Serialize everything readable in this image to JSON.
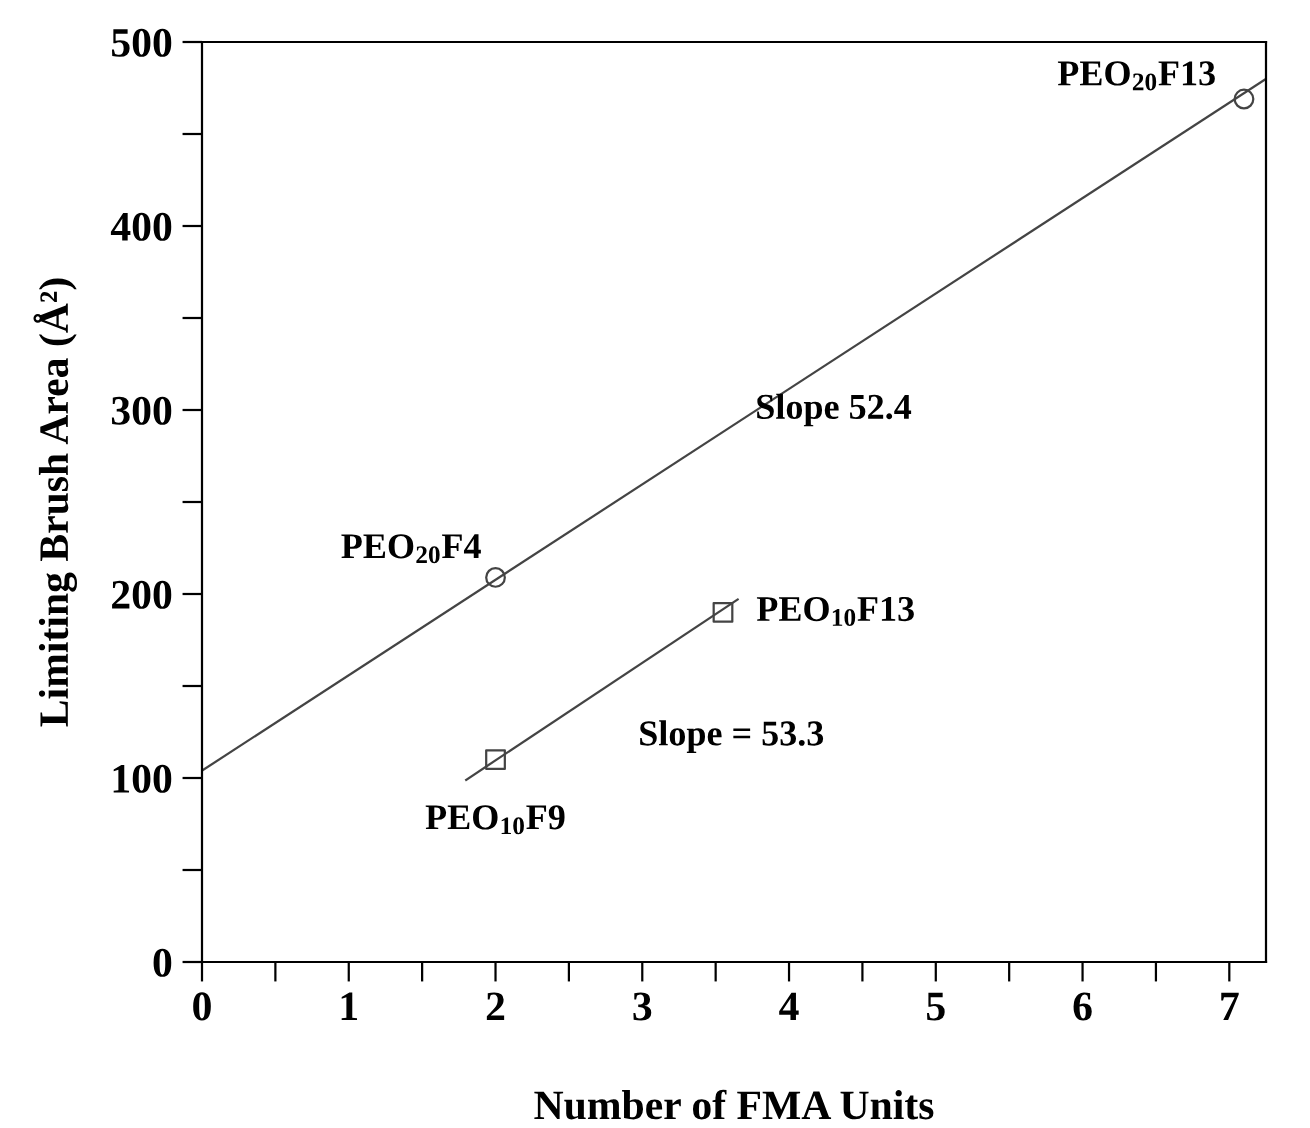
{
  "chart_data": {
    "type": "scatter",
    "xlabel": "Number of FMA Units",
    "ylabel": "Limiting Brush Area (Å²)",
    "xlim": [
      0,
      7.25
    ],
    "ylim": [
      0,
      500
    ],
    "xticks": [
      0,
      {
        "value": 0.5,
        "label": null
      },
      1,
      {
        "value": 1.5,
        "label": null
      },
      2,
      {
        "value": 2.5,
        "label": null
      },
      3,
      {
        "value": 3.5,
        "label": null
      },
      4,
      {
        "value": 4.5,
        "label": null
      },
      5,
      {
        "value": 5.5,
        "label": null
      },
      6,
      {
        "value": 6.5,
        "label": null
      },
      7
    ],
    "yticks": [
      0,
      {
        "value": 50,
        "label": null
      },
      100,
      {
        "value": 150,
        "label": null
      },
      200,
      {
        "value": 250,
        "label": null
      },
      300,
      {
        "value": 350,
        "label": null
      },
      400,
      {
        "value": 450,
        "label": null
      },
      500
    ],
    "grid": false,
    "legend": false,
    "series": [
      {
        "marker": "circle",
        "color": "#444444",
        "x": [
          2,
          7.1
        ],
        "values": [
          209,
          469
        ]
      },
      {
        "marker": "square",
        "color": "#444444",
        "x": [
          2,
          3.55
        ],
        "values": [
          110,
          190
        ]
      },
      {
        "type": "line",
        "marker": "none",
        "line_style": "solid",
        "color": "#444444",
        "x": [
          0,
          7.25
        ],
        "values": [
          104,
          480
        ]
      },
      {
        "type": "line",
        "marker": "none",
        "line_style": "solid",
        "color": "#444444",
        "x": [
          1.8,
          3.65
        ],
        "values": [
          99,
          197
        ]
      }
    ],
    "annotations": [
      {
        "text": "PEO$_{20}$F4",
        "x": 2,
        "y": 209
      },
      {
        "text": "PEO$_{20}$F13",
        "x": 7.1,
        "y": 469
      },
      {
        "text": "PEO$_{10}$F13",
        "x": 3.55,
        "y": 190
      },
      {
        "text": "PEO$_{10}$F9",
        "x": 2,
        "y": 110
      },
      "Slope 52.4",
      "Slope = 53.3"
    ]
  }
}
